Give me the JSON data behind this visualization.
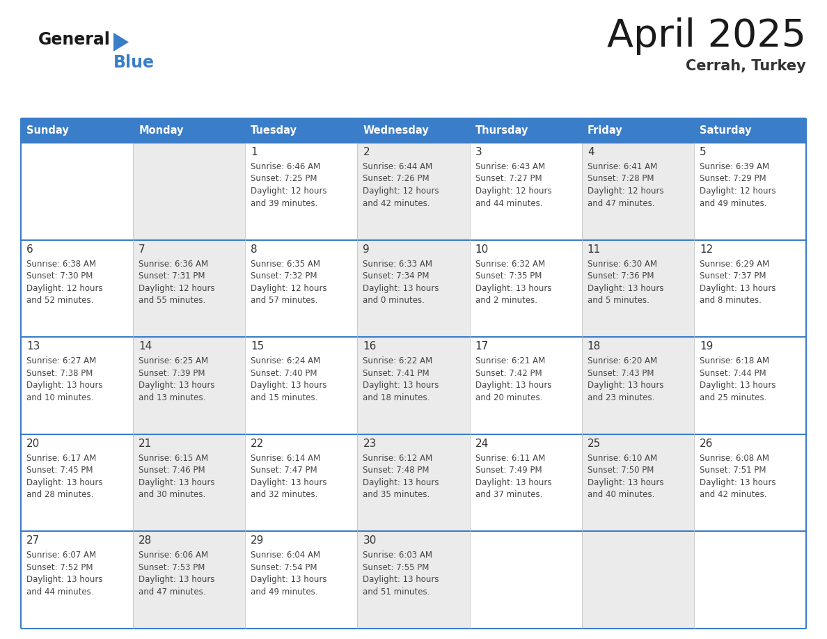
{
  "title": "April 2025",
  "subtitle": "Cerrah, Turkey",
  "days_of_week": [
    "Sunday",
    "Monday",
    "Tuesday",
    "Wednesday",
    "Thursday",
    "Friday",
    "Saturday"
  ],
  "header_bg_color": "#3A7DC9",
  "header_text_color": "#FFFFFF",
  "cell_bg_white": "#FFFFFF",
  "cell_bg_grey": "#EBEBEB",
  "border_color": "#3A7DC9",
  "row_separator_color": "#3A7DC9",
  "day_num_color": "#333333",
  "cell_text_color": "#444444",
  "title_color": "#1a1a1a",
  "subtitle_color": "#333333",
  "logo_general_color": "#1a1a1a",
  "logo_blue_color": "#3A7DC9",
  "logo_triangle_color": "#3A7DC9",
  "weeks": [
    [
      {
        "day": null,
        "info": null
      },
      {
        "day": null,
        "info": null
      },
      {
        "day": 1,
        "info": "Sunrise: 6:46 AM\nSunset: 7:25 PM\nDaylight: 12 hours\nand 39 minutes."
      },
      {
        "day": 2,
        "info": "Sunrise: 6:44 AM\nSunset: 7:26 PM\nDaylight: 12 hours\nand 42 minutes."
      },
      {
        "day": 3,
        "info": "Sunrise: 6:43 AM\nSunset: 7:27 PM\nDaylight: 12 hours\nand 44 minutes."
      },
      {
        "day": 4,
        "info": "Sunrise: 6:41 AM\nSunset: 7:28 PM\nDaylight: 12 hours\nand 47 minutes."
      },
      {
        "day": 5,
        "info": "Sunrise: 6:39 AM\nSunset: 7:29 PM\nDaylight: 12 hours\nand 49 minutes."
      }
    ],
    [
      {
        "day": 6,
        "info": "Sunrise: 6:38 AM\nSunset: 7:30 PM\nDaylight: 12 hours\nand 52 minutes."
      },
      {
        "day": 7,
        "info": "Sunrise: 6:36 AM\nSunset: 7:31 PM\nDaylight: 12 hours\nand 55 minutes."
      },
      {
        "day": 8,
        "info": "Sunrise: 6:35 AM\nSunset: 7:32 PM\nDaylight: 12 hours\nand 57 minutes."
      },
      {
        "day": 9,
        "info": "Sunrise: 6:33 AM\nSunset: 7:34 PM\nDaylight: 13 hours\nand 0 minutes."
      },
      {
        "day": 10,
        "info": "Sunrise: 6:32 AM\nSunset: 7:35 PM\nDaylight: 13 hours\nand 2 minutes."
      },
      {
        "day": 11,
        "info": "Sunrise: 6:30 AM\nSunset: 7:36 PM\nDaylight: 13 hours\nand 5 minutes."
      },
      {
        "day": 12,
        "info": "Sunrise: 6:29 AM\nSunset: 7:37 PM\nDaylight: 13 hours\nand 8 minutes."
      }
    ],
    [
      {
        "day": 13,
        "info": "Sunrise: 6:27 AM\nSunset: 7:38 PM\nDaylight: 13 hours\nand 10 minutes."
      },
      {
        "day": 14,
        "info": "Sunrise: 6:25 AM\nSunset: 7:39 PM\nDaylight: 13 hours\nand 13 minutes."
      },
      {
        "day": 15,
        "info": "Sunrise: 6:24 AM\nSunset: 7:40 PM\nDaylight: 13 hours\nand 15 minutes."
      },
      {
        "day": 16,
        "info": "Sunrise: 6:22 AM\nSunset: 7:41 PM\nDaylight: 13 hours\nand 18 minutes."
      },
      {
        "day": 17,
        "info": "Sunrise: 6:21 AM\nSunset: 7:42 PM\nDaylight: 13 hours\nand 20 minutes."
      },
      {
        "day": 18,
        "info": "Sunrise: 6:20 AM\nSunset: 7:43 PM\nDaylight: 13 hours\nand 23 minutes."
      },
      {
        "day": 19,
        "info": "Sunrise: 6:18 AM\nSunset: 7:44 PM\nDaylight: 13 hours\nand 25 minutes."
      }
    ],
    [
      {
        "day": 20,
        "info": "Sunrise: 6:17 AM\nSunset: 7:45 PM\nDaylight: 13 hours\nand 28 minutes."
      },
      {
        "day": 21,
        "info": "Sunrise: 6:15 AM\nSunset: 7:46 PM\nDaylight: 13 hours\nand 30 minutes."
      },
      {
        "day": 22,
        "info": "Sunrise: 6:14 AM\nSunset: 7:47 PM\nDaylight: 13 hours\nand 32 minutes."
      },
      {
        "day": 23,
        "info": "Sunrise: 6:12 AM\nSunset: 7:48 PM\nDaylight: 13 hours\nand 35 minutes."
      },
      {
        "day": 24,
        "info": "Sunrise: 6:11 AM\nSunset: 7:49 PM\nDaylight: 13 hours\nand 37 minutes."
      },
      {
        "day": 25,
        "info": "Sunrise: 6:10 AM\nSunset: 7:50 PM\nDaylight: 13 hours\nand 40 minutes."
      },
      {
        "day": 26,
        "info": "Sunrise: 6:08 AM\nSunset: 7:51 PM\nDaylight: 13 hours\nand 42 minutes."
      }
    ],
    [
      {
        "day": 27,
        "info": "Sunrise: 6:07 AM\nSunset: 7:52 PM\nDaylight: 13 hours\nand 44 minutes."
      },
      {
        "day": 28,
        "info": "Sunrise: 6:06 AM\nSunset: 7:53 PM\nDaylight: 13 hours\nand 47 minutes."
      },
      {
        "day": 29,
        "info": "Sunrise: 6:04 AM\nSunset: 7:54 PM\nDaylight: 13 hours\nand 49 minutes."
      },
      {
        "day": 30,
        "info": "Sunrise: 6:03 AM\nSunset: 7:55 PM\nDaylight: 13 hours\nand 51 minutes."
      },
      {
        "day": null,
        "info": null
      },
      {
        "day": null,
        "info": null
      },
      {
        "day": null,
        "info": null
      }
    ]
  ]
}
